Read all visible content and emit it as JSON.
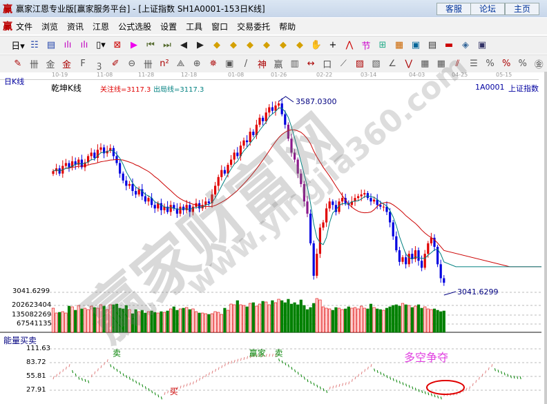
{
  "window": {
    "title": "赢家江恩专业版[赢家服务平台] - [上证指数  SH1A0001-153日K线]",
    "logo": "赢",
    "buttons": [
      "客服",
      "论坛",
      "主页"
    ]
  },
  "menu": [
    "文件",
    "浏览",
    "资讯",
    "江恩",
    "公式选股",
    "设置",
    "工具",
    "窗口",
    "交易委托",
    "帮助"
  ],
  "toolbar1": [
    {
      "icon": "period-day-icon",
      "g": "日▾"
    },
    {
      "icon": "chart-icon",
      "g": "☷"
    },
    {
      "icon": "doc-icon",
      "g": "▤"
    },
    {
      "icon": "bar3-icon",
      "g": "ılı"
    },
    {
      "icon": "bar9-icon",
      "g": "ılı"
    },
    {
      "icon": "candle-icon",
      "g": "▯▾"
    },
    {
      "icon": "formula-icon",
      "g": "⊠"
    },
    {
      "icon": "flag-icon",
      "g": "▶"
    },
    {
      "icon": "first-icon",
      "g": "⏮"
    },
    {
      "icon": "last-icon",
      "g": "⏭"
    },
    {
      "icon": "left-icon",
      "g": "◀"
    },
    {
      "icon": "right-icon",
      "g": "▶"
    },
    {
      "icon": "zoom-left-icon",
      "g": "◆"
    },
    {
      "icon": "zoom-right-icon",
      "g": "◆"
    },
    {
      "icon": "zoom-in-icon",
      "g": "◆"
    },
    {
      "icon": "zoom-out-icon",
      "g": "◆"
    },
    {
      "icon": "expand-icon",
      "g": "◆"
    },
    {
      "icon": "shrink-icon",
      "g": "◆"
    },
    {
      "icon": "hand-icon",
      "g": "✋"
    },
    {
      "icon": "crosshair-icon",
      "g": "+"
    },
    {
      "icon": "line-icon",
      "g": "⋀"
    },
    {
      "icon": "node-icon",
      "g": "节"
    },
    {
      "icon": "grid-icon",
      "g": "⊞"
    },
    {
      "icon": "calendar-icon",
      "g": "▦"
    },
    {
      "icon": "calculator-icon",
      "g": "▣"
    },
    {
      "icon": "notes-icon",
      "g": "▤"
    },
    {
      "icon": "save-icon",
      "g": "▬"
    },
    {
      "icon": "network-icon",
      "g": "◈"
    },
    {
      "icon": "computer-icon",
      "g": "▣"
    }
  ],
  "toolbar2": [
    {
      "icon": "pen-icon",
      "g": "✎"
    },
    {
      "icon": "hash-icon",
      "g": "卌"
    },
    {
      "icon": "gold1-icon",
      "g": "金"
    },
    {
      "icon": "gold2-icon",
      "g": "金"
    },
    {
      "icon": "f-icon",
      "g": "F"
    },
    {
      "icon": "spiral-icon",
      "g": "ꝫ"
    },
    {
      "icon": "pencil-icon",
      "g": "✐"
    },
    {
      "icon": "circle-icon",
      "g": "⊖"
    },
    {
      "icon": "bars-icon",
      "g": "卌"
    },
    {
      "icon": "n2-icon",
      "g": "n²"
    },
    {
      "icon": "angle-icon",
      "g": "⟁"
    },
    {
      "icon": "target-icon",
      "g": "⊕"
    },
    {
      "icon": "star-icon",
      "g": "✵"
    },
    {
      "icon": "box-icon",
      "g": "▣"
    },
    {
      "icon": "slash-icon",
      "g": "/"
    },
    {
      "icon": "shen-icon",
      "g": "神"
    },
    {
      "icon": "ying-icon",
      "g": "赢"
    },
    {
      "icon": "ruler-icon",
      "g": "▥"
    },
    {
      "icon": "width-icon",
      "g": "↔"
    },
    {
      "icon": "rect-icon",
      "g": "口"
    },
    {
      "icon": "fan-icon",
      "g": "⟋"
    },
    {
      "icon": "gann-box-icon",
      "g": "▨"
    },
    {
      "icon": "gann-sq-icon",
      "g": "▧"
    },
    {
      "icon": "fan2-icon",
      "g": "∠"
    },
    {
      "icon": "wave-icon",
      "g": "⋁"
    },
    {
      "icon": "grid2-icon",
      "g": "▦"
    },
    {
      "icon": "grid3-icon",
      "g": "▦"
    },
    {
      "icon": "parallel-icon",
      "g": "⫽"
    },
    {
      "icon": "table-icon",
      "g": "☰"
    },
    {
      "icon": "percent-line-icon",
      "g": "%"
    },
    {
      "icon": "percent-icon",
      "g": "%"
    },
    {
      "icon": "percent-lines-icon",
      "g": "%"
    },
    {
      "icon": "coin-icon",
      "g": "㊎"
    }
  ],
  "dates": [
    "10-19",
    "11-08",
    "11-28",
    "12-18",
    "01-08",
    "01-26",
    "02-22",
    "03-14",
    "04-03",
    "04-25",
    "05-15"
  ],
  "header": {
    "period": "日K线",
    "indicator": "乾坤K线",
    "focus": "关注线=3117.3",
    "exit": "出局线=3117.3",
    "code": "1A0001",
    "name": "上证指数"
  },
  "colors": {
    "up": "#e00000",
    "down": "#0000e0",
    "down_alt": "#8b1a8b",
    "ma_slow": "#cc0000",
    "ma_fast": "#008080",
    "vol_up_fill": "#ffd0d0",
    "vol_down": "#008000"
  },
  "chart_data": {
    "type": "candlestick",
    "high_label": "3587.0300",
    "low_label": "3041.6299",
    "yaxis_label": "3041.6299",
    "closes": [
      3387,
      3395,
      3380,
      3402,
      3410,
      3398,
      3415,
      3405,
      3420,
      3398,
      3412,
      3430,
      3440,
      3425,
      3448,
      3455,
      3438,
      3445,
      3453,
      3430,
      3410,
      3380,
      3360,
      3345,
      3350,
      3330,
      3320,
      3335,
      3315,
      3300,
      3310,
      3290,
      3280,
      3295,
      3275,
      3285,
      3270,
      3290,
      3280,
      3265,
      3285,
      3275,
      3290,
      3270,
      3285,
      3295,
      3280,
      3290,
      3300,
      3295,
      3320,
      3345,
      3370,
      3390,
      3380,
      3405,
      3420,
      3440,
      3430,
      3460,
      3475,
      3470,
      3500,
      3490,
      3520,
      3540,
      3530,
      3555,
      3570,
      3560,
      3575,
      3581,
      3550,
      3520,
      3480,
      3440,
      3420,
      3380,
      3350,
      3300,
      3265,
      3180,
      3087,
      3150,
      3225,
      3240,
      3280,
      3300,
      3290,
      3270,
      3300,
      3310,
      3295,
      3290,
      3300,
      3310,
      3315,
      3320,
      3324,
      3310,
      3300,
      3305,
      3290,
      3285,
      3285,
      3270,
      3240,
      3200,
      3160,
      3127,
      3140,
      3120,
      3150,
      3135,
      3160,
      3130,
      3110,
      3150,
      3180,
      3196,
      3170,
      3120,
      3080,
      3067
    ],
    "volume_axis": [
      "202623404",
      "135082269",
      "67541135"
    ],
    "volume_millions": [
      175,
      140,
      145,
      150,
      140,
      190,
      185,
      160,
      195,
      170,
      175,
      165,
      190,
      180,
      175,
      200,
      190,
      165,
      200,
      200,
      205,
      175,
      170,
      195,
      165,
      135,
      165,
      150,
      160,
      140,
      150,
      155,
      145,
      140,
      150,
      145,
      155,
      170,
      185,
      160,
      170,
      175,
      180,
      165,
      170,
      150,
      140,
      140,
      135,
      130,
      135,
      150,
      145,
      130,
      175,
      160,
      205,
      200,
      230,
      200,
      195,
      185,
      210,
      215,
      190,
      205,
      225,
      220,
      200,
      230,
      215,
      240,
      230,
      215,
      240,
      205,
      215,
      200,
      235,
      195,
      165,
      180,
      210,
      245,
      235,
      185,
      175,
      170,
      160,
      180,
      175,
      165,
      170,
      185,
      175,
      180,
      170,
      190,
      175,
      170,
      205,
      180,
      170,
      165,
      160,
      175,
      185,
      195,
      200,
      190,
      210,
      200,
      195,
      180,
      190,
      200,
      175,
      185,
      170,
      165,
      170,
      160,
      150,
      155
    ],
    "indicator": {
      "name": "能量买卖",
      "axis": [
        "111.63",
        "83.72",
        "55.81",
        "27.91"
      ],
      "keypoints": [
        [
          0,
          50
        ],
        [
          5,
          75
        ],
        [
          8,
          55
        ],
        [
          11,
          48
        ],
        [
          17,
          85
        ],
        [
          22,
          62
        ],
        [
          28,
          40
        ],
        [
          34,
          15
        ],
        [
          37,
          25
        ],
        [
          44,
          40
        ],
        [
          55,
          80
        ],
        [
          63,
          95
        ],
        [
          70,
          96
        ],
        [
          74,
          80
        ],
        [
          80,
          50
        ],
        [
          86,
          28
        ],
        [
          93,
          40
        ],
        [
          100,
          75
        ],
        [
          106,
          55
        ],
        [
          115,
          30
        ],
        [
          122,
          15
        ],
        [
          127,
          18
        ],
        [
          131,
          30
        ],
        [
          138,
          75
        ],
        [
          144,
          58
        ],
        [
          148,
          55
        ]
      ],
      "labels": [
        {
          "t": "卖",
          "i": 20,
          "v": 100
        },
        {
          "t": "买",
          "i": 38,
          "v": 22
        },
        {
          "t": "赢家",
          "i": 63,
          "v": 100
        },
        {
          "t": "卖",
          "i": 71,
          "v": 100
        }
      ],
      "annotation": "多空争夺"
    }
  },
  "watermark": {
    "text": "赢家财富网",
    "url": "www.yingjia360.com"
  }
}
